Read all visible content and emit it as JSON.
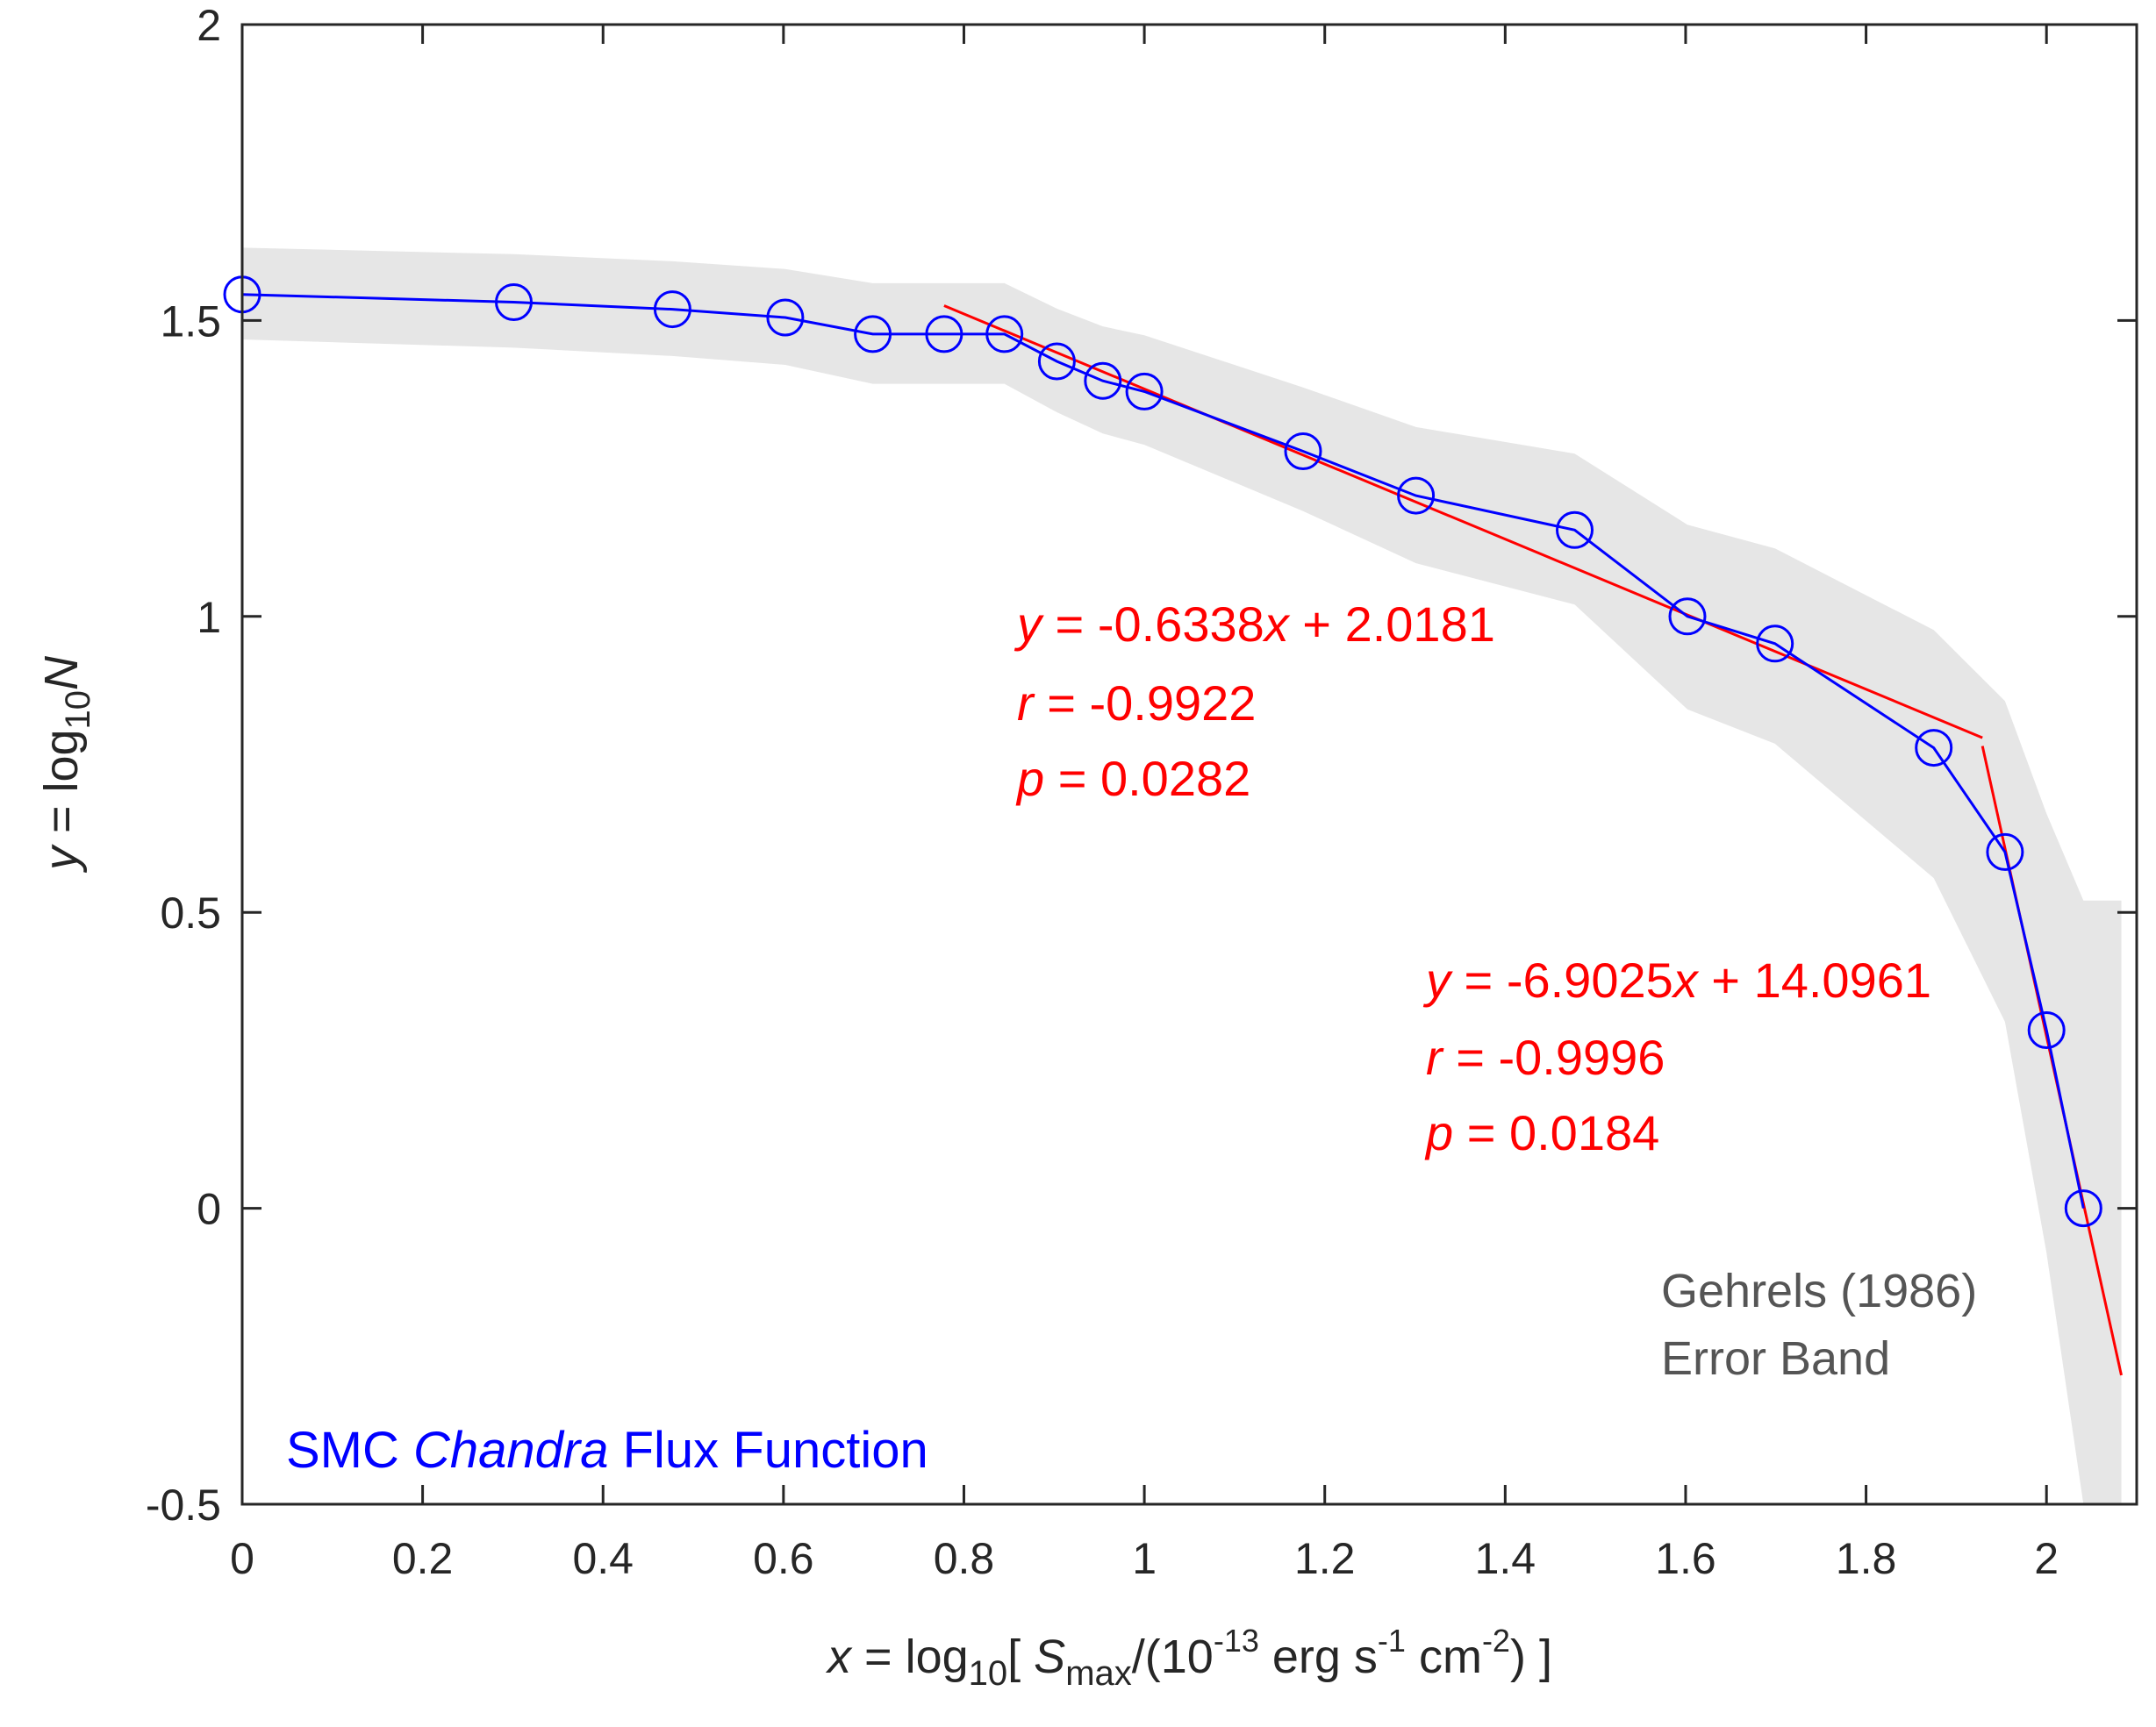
{
  "chart_data": {
    "type": "line",
    "title": "",
    "xlim": [
      0,
      2.1
    ],
    "ylim": [
      -0.5,
      2
    ],
    "xticks": [
      0,
      0.2,
      0.4,
      0.6,
      0.8,
      1,
      1.2,
      1.4,
      1.6,
      1.8,
      2
    ],
    "xtick_labels": [
      "0",
      "0.2",
      "0.4",
      "0.6",
      "0.8",
      "1",
      "1.2",
      "1.4",
      "1.6",
      "1.8",
      "2"
    ],
    "yticks": [
      -0.5,
      0,
      0.5,
      1,
      1.5,
      2
    ],
    "ytick_labels": [
      "-0.5",
      "0",
      "0.5",
      "1",
      "1.5",
      "2"
    ],
    "xlabel": {
      "var": "x",
      "eq": " = log",
      "sub10": "10",
      "open": "[ ",
      "S": "S",
      "max": "max",
      "mid": "/(10",
      "exp13": "-13",
      "erg": " erg s",
      "exp1": "-1",
      "cm": " cm",
      "exp2": "-2",
      "close": ") ]"
    },
    "ylabel": {
      "var": "y",
      "eq": " = log",
      "sub10": "10",
      "N": "N"
    },
    "series": [
      {
        "name": "SMC Chandra Flux Function",
        "color": "#0000ff",
        "marker": "circle",
        "x": [
          0,
          0.301,
          0.477,
          0.602,
          0.699,
          0.778,
          0.845,
          0.903,
          0.954,
          1.0,
          1.176,
          1.301,
          1.477,
          1.602,
          1.699,
          1.875,
          1.954,
          2.0,
          2.041
        ],
        "y": [
          1.544,
          1.531,
          1.519,
          1.505,
          1.477,
          1.477,
          1.477,
          1.431,
          1.398,
          1.38,
          1.279,
          1.204,
          1.146,
          1.0,
          0.954,
          0.778,
          0.602,
          0.301,
          0.0
        ]
      },
      {
        "name": "Fit 1",
        "color": "#ff0000",
        "x": [
          0.778,
          1.929
        ],
        "y": [
          1.525,
          0.795
        ]
      },
      {
        "name": "Fit 2",
        "color": "#ff0000",
        "x": [
          1.929,
          2.083
        ],
        "y": [
          0.781,
          -0.282
        ]
      }
    ],
    "error_band": {
      "name": "Gehrels (1986) Error Band",
      "color": "#e6e6e6",
      "x": [
        0,
        0.301,
        0.477,
        0.602,
        0.699,
        0.778,
        0.845,
        0.903,
        0.954,
        1.0,
        1.176,
        1.301,
        1.477,
        1.602,
        1.699,
        1.875,
        1.954,
        2.0,
        2.041,
        2.083
      ],
      "upper": [
        1.623,
        1.612,
        1.6,
        1.587,
        1.563,
        1.563,
        1.563,
        1.52,
        1.49,
        1.475,
        1.387,
        1.32,
        1.275,
        1.155,
        1.115,
        0.977,
        0.857,
        0.667,
        0.52,
        0.52
      ],
      "lower": [
        1.468,
        1.454,
        1.44,
        1.425,
        1.393,
        1.393,
        1.393,
        1.345,
        1.309,
        1.29,
        1.178,
        1.09,
        1.02,
        0.843,
        0.785,
        0.558,
        0.315,
        -0.075,
        -0.5,
        -0.5
      ]
    },
    "annotations": {
      "fit1": {
        "eq_var": "y",
        "eq_mid": " = -0.6338",
        "eq_x": "x",
        "eq_end": " + 2.0181",
        "r_var": "r",
        "r_val": " = -0.9922",
        "p_var": "p",
        "p_val": " = 0.0282"
      },
      "fit2": {
        "eq_var": "y",
        "eq_mid": " = -6.9025",
        "eq_x": "x",
        "eq_end": " + 14.0961",
        "r_var": "r",
        "r_val": " = -0.9996",
        "p_var": "p",
        "p_val": " = 0.0184"
      },
      "band_label_line1": "Gehrels (1986)",
      "band_label_line2": "Error Band",
      "legend_pre": "SMC ",
      "legend_italic": "Chandra",
      "legend_post": " Flux Function"
    }
  }
}
